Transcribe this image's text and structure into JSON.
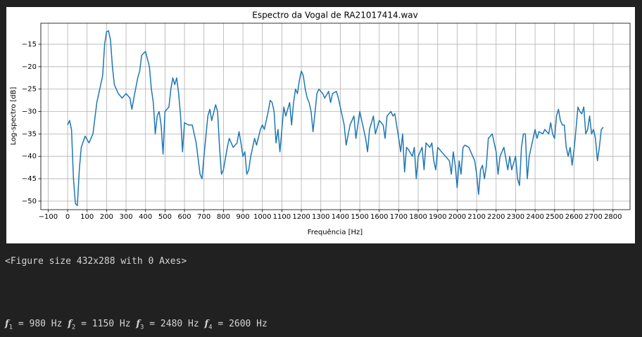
{
  "chart_data": {
    "type": "line",
    "title": "Espectro da Vogal de RA21017414.wav",
    "xlabel": "Frequência [Hz]",
    "ylabel": "Log-spectro [dB]",
    "x": [
      0,
      10,
      20,
      30,
      40,
      50,
      60,
      70,
      90,
      110,
      130,
      150,
      170,
      180,
      190,
      200,
      210,
      220,
      230,
      240,
      260,
      280,
      300,
      320,
      330,
      340,
      360,
      370,
      380,
      390,
      400,
      420,
      430,
      440,
      450,
      460,
      470,
      480,
      490,
      500,
      520,
      530,
      540,
      550,
      560,
      570,
      580,
      590,
      600,
      620,
      640,
      660,
      680,
      690,
      700,
      720,
      730,
      740,
      760,
      770,
      780,
      790,
      800,
      820,
      830,
      850,
      870,
      880,
      890,
      900,
      910,
      920,
      930,
      940,
      960,
      970,
      990,
      1000,
      1010,
      1020,
      1030,
      1040,
      1050,
      1060,
      1070,
      1080,
      1090,
      1100,
      1110,
      1120,
      1140,
      1150,
      1160,
      1170,
      1180,
      1190,
      1200,
      1210,
      1220,
      1230,
      1240,
      1250,
      1260,
      1280,
      1290,
      1310,
      1320,
      1340,
      1350,
      1360,
      1380,
      1390,
      1400,
      1420,
      1430,
      1450,
      1470,
      1480,
      1500,
      1510,
      1530,
      1540,
      1550,
      1570,
      1580,
      1600,
      1620,
      1630,
      1640,
      1660,
      1670,
      1680,
      1700,
      1710,
      1720,
      1730,
      1740,
      1750,
      1770,
      1780,
      1790,
      1800,
      1810,
      1820,
      1830,
      1840,
      1860,
      1870,
      1880,
      1890,
      1900,
      1920,
      1940,
      1960,
      1970,
      1980,
      1990,
      2000,
      2010,
      2020,
      2030,
      2040,
      2060,
      2080,
      2090,
      2100,
      2110,
      2120,
      2130,
      2140,
      2150,
      2160,
      2180,
      2190,
      2200,
      2210,
      2220,
      2240,
      2260,
      2270,
      2280,
      2300,
      2310,
      2320,
      2330,
      2340,
      2350,
      2360,
      2370,
      2380,
      2400,
      2410,
      2420,
      2440,
      2450,
      2470,
      2480,
      2490,
      2500,
      2510,
      2520,
      2530,
      2540,
      2550,
      2560,
      2570,
      2580,
      2590,
      2600,
      2610,
      2620,
      2630,
      2640,
      2650,
      2660,
      2670,
      2680,
      2690,
      2700,
      2710,
      2720,
      2730,
      2740,
      2750
    ],
    "series": [
      {
        "color": "#1f77b4",
        "values": [
          -33,
          -32,
          -34,
          -45,
          -50.5,
          -51,
          -43,
          -38,
          -35.5,
          -37,
          -35,
          -28,
          -24,
          -22,
          -15,
          -12.2,
          -12,
          -14,
          -20,
          -24,
          -26,
          -27,
          -26,
          -27,
          -29.5,
          -27,
          -22.5,
          -21,
          -17.5,
          -17,
          -16.6,
          -20,
          -25,
          -28,
          -35,
          -31,
          -30,
          -33,
          -39.5,
          -30,
          -29,
          -25,
          -22.5,
          -24,
          -22.5,
          -26,
          -31,
          -39,
          -32.5,
          -33,
          -33,
          -37,
          -44,
          -45,
          -40,
          -31,
          -29.5,
          -32,
          -28.5,
          -30,
          -38,
          -44,
          -43,
          -38,
          -36,
          -38,
          -37,
          -34.5,
          -37,
          -40,
          -39,
          -44,
          -43,
          -40,
          -36,
          -37.5,
          -34,
          -33,
          -34,
          -32,
          -30,
          -27.5,
          -28,
          -30,
          -37,
          -34,
          -39,
          -34,
          -29,
          -31,
          -28,
          -33,
          -28,
          -25,
          -26,
          -23,
          -21,
          -22,
          -25,
          -27,
          -28,
          -30,
          -34.5,
          -26,
          -25,
          -26,
          -27,
          -25.5,
          -28,
          -26,
          -25.5,
          -27,
          -29,
          -33,
          -37.5,
          -33,
          -31,
          -36,
          -30,
          -32,
          -36,
          -39,
          -34,
          -31,
          -35,
          -32,
          -33,
          -36,
          -31,
          -30,
          -31,
          -30.5,
          -36,
          -39,
          -35,
          -43.5,
          -38,
          -38.5,
          -40,
          -38,
          -45,
          -40,
          -39,
          -38,
          -43,
          -37,
          -38,
          -37,
          -41,
          -43,
          -38,
          -39,
          -40,
          -41,
          -44,
          -39,
          -42,
          -47,
          -41,
          -44,
          -38,
          -37.5,
          -38,
          -40,
          -41,
          -44,
          -48.5,
          -43,
          -42,
          -45,
          -42,
          -36,
          -35,
          -37,
          -39,
          -44,
          -40,
          -38,
          -43,
          -40,
          -43,
          -40,
          -45,
          -46.5,
          -38,
          -35,
          -35,
          -45,
          -40,
          -38,
          -34,
          -36,
          -34.5,
          -35,
          -34,
          -35,
          -32.5,
          -35,
          -36,
          -31,
          -29.5,
          -32,
          -33,
          -33,
          -38,
          -40,
          -38,
          -42,
          -38.5,
          -34,
          -29,
          -30,
          -30.5,
          -29,
          -35,
          -34,
          -31,
          -35,
          -34,
          -36,
          -41,
          -38,
          -34,
          -33.5
        ]
      }
    ],
    "xlim": [
      -137.5,
      2887.5
    ],
    "ylim": [
      -51.9,
      -10.3
    ],
    "xticks": [
      {
        "value": -100,
        "label": "−100"
      },
      0,
      100,
      200,
      300,
      400,
      500,
      600,
      700,
      800,
      900,
      1000,
      1100,
      1200,
      1300,
      1400,
      1500,
      1600,
      1700,
      1800,
      1900,
      2000,
      2100,
      2200,
      2300,
      2400,
      2500,
      2600,
      2700,
      2800
    ],
    "yticks": [
      {
        "value": -15,
        "label": "−15"
      },
      {
        "value": -20,
        "label": "−20"
      },
      {
        "value": -25,
        "label": "−25"
      },
      {
        "value": -30,
        "label": "−30"
      },
      {
        "value": -35,
        "label": "−35"
      },
      {
        "value": -40,
        "label": "−40"
      },
      {
        "value": -45,
        "label": "−45"
      },
      {
        "value": -50,
        "label": "−50"
      }
    ],
    "grid": true
  },
  "outputs": {
    "figure_repr": "<Figure size 432x288 with 0 Axes>",
    "formants": [
      {
        "symbol": "f",
        "sub": "1",
        "text": "= 980 Hz"
      },
      {
        "symbol": "f",
        "sub": "2",
        "text": "= 1150 Hz"
      },
      {
        "symbol": "f",
        "sub": "3",
        "text": "= 2480 Hz"
      },
      {
        "symbol": "f",
        "sub": "4",
        "text": "= 2600 Hz"
      }
    ]
  }
}
